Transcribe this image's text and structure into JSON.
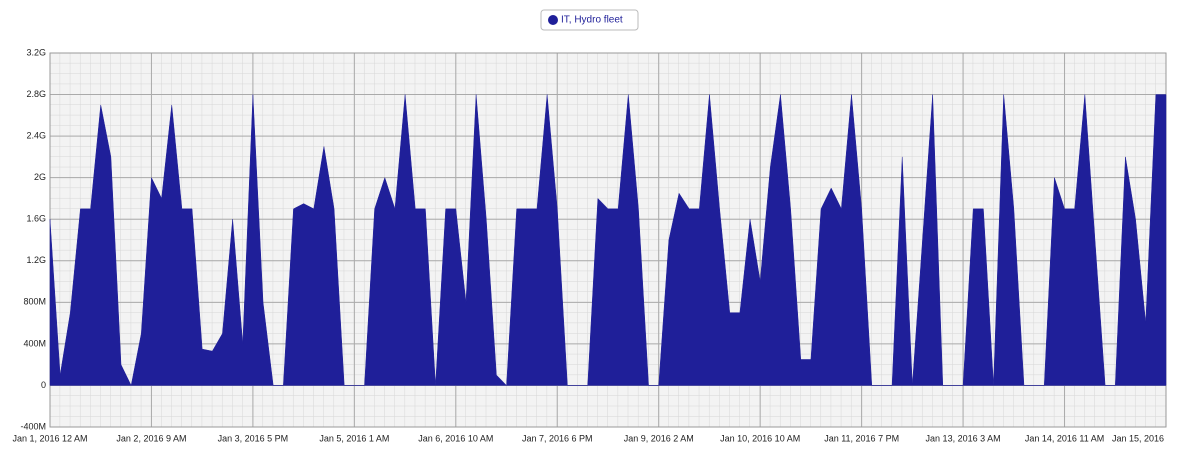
{
  "chart_data": {
    "type": "area",
    "legend": "top",
    "grid": true,
    "categories": [
      "Jan 1, 2016 12 AM",
      null,
      null,
      null,
      null,
      null,
      null,
      null,
      null,
      null,
      "Jan 2, 2016 9 AM",
      null,
      null,
      null,
      null,
      null,
      null,
      null,
      null,
      null,
      "Jan 3, 2016 5 PM",
      null,
      null,
      null,
      null,
      null,
      null,
      null,
      null,
      null,
      "Jan 5, 2016 1 AM",
      null,
      null,
      null,
      null,
      null,
      null,
      null,
      null,
      null,
      "Jan 6, 2016 10 AM",
      null,
      null,
      null,
      null,
      null,
      null,
      null,
      null,
      null,
      "Jan 7, 2016 6 PM",
      null,
      null,
      null,
      null,
      null,
      null,
      null,
      null,
      null,
      "Jan 9, 2016 2 AM",
      null,
      null,
      null,
      null,
      null,
      null,
      null,
      null,
      null,
      "Jan 10, 2016 10 AM",
      null,
      null,
      null,
      null,
      null,
      null,
      null,
      null,
      null,
      "Jan 11, 2016 7 PM",
      null,
      null,
      null,
      null,
      null,
      null,
      null,
      null,
      null,
      "Jan 13, 2016 3 AM",
      null,
      null,
      null,
      null,
      null,
      null,
      null,
      null,
      null,
      "Jan 14, 2016 11 AM",
      null,
      null,
      null,
      null,
      null,
      null,
      null,
      null,
      null,
      "Jan 15, 2016"
    ],
    "series": [
      {
        "name": "IT, Hydro fleet",
        "color": "#1f1f99",
        "values": [
          1600000000.0,
          100000000.0,
          700000000.0,
          1700000000.0,
          1700000000.0,
          2700000000.0,
          2200000000.0,
          200000000.0,
          0,
          500000000.0,
          2000000000.0,
          1800000000.0,
          2700000000.0,
          1700000000.0,
          1700000000.0,
          350000000.0,
          330000000.0,
          500000000.0,
          1600000000.0,
          400000000.0,
          2800000000.0,
          800000000.0,
          0,
          0,
          1700000000.0,
          1750000000.0,
          1700000000.0,
          2300000000.0,
          1700000000.0,
          0,
          0,
          0,
          1700000000.0,
          2000000000.0,
          1700000000.0,
          2800000000.0,
          1700000000.0,
          1700000000.0,
          0,
          1700000000.0,
          1700000000.0,
          800000000.0,
          2800000000.0,
          1600000000.0,
          100000000.0,
          0,
          1700000000.0,
          1700000000.0,
          1700000000.0,
          2800000000.0,
          1700000000.0,
          0,
          0,
          0,
          1800000000.0,
          1700000000.0,
          1700000000.0,
          2800000000.0,
          1700000000.0,
          0,
          0,
          1400000000.0,
          1850000000.0,
          1700000000.0,
          1700000000.0,
          2800000000.0,
          1700000000.0,
          700000000.0,
          700000000.0,
          1600000000.0,
          1000000000.0,
          2100000000.0,
          2800000000.0,
          1700000000.0,
          250000000.0,
          250000000.0,
          1700000000.0,
          1900000000.0,
          1700000000.0,
          2800000000.0,
          1700000000.0,
          0,
          0,
          0,
          2200000000.0,
          0,
          1400000000.0,
          2800000000.0,
          0,
          0,
          0,
          1700000000.0,
          1700000000.0,
          0,
          2800000000.0,
          1700000000.0,
          0,
          0,
          0,
          2000000000.0,
          1700000000.0,
          1700000000.0,
          2800000000.0,
          1400000000.0,
          0,
          0,
          2200000000.0,
          1600000000.0,
          600000000.0,
          2800000000.0,
          2800000000.0
        ]
      }
    ],
    "ylim": [
      -400000000.0,
      3200000000.0
    ],
    "yticks": [
      {
        "value": -400000000.0,
        "label": "-400M"
      },
      0,
      {
        "value": 400000000.0,
        "label": "400M"
      },
      {
        "value": 800000000.0,
        "label": "800M"
      },
      {
        "value": 1200000000.0,
        "label": "1.2G"
      },
      {
        "value": 1600000000.0,
        "label": "1.6G"
      },
      {
        "value": 2000000000.0,
        "label": "2G"
      },
      {
        "value": 2400000000.0,
        "label": "2.4G"
      },
      {
        "value": 2800000000.0,
        "label": "2.8G"
      },
      {
        "value": 3200000000.0,
        "label": "3.2G"
      }
    ]
  }
}
